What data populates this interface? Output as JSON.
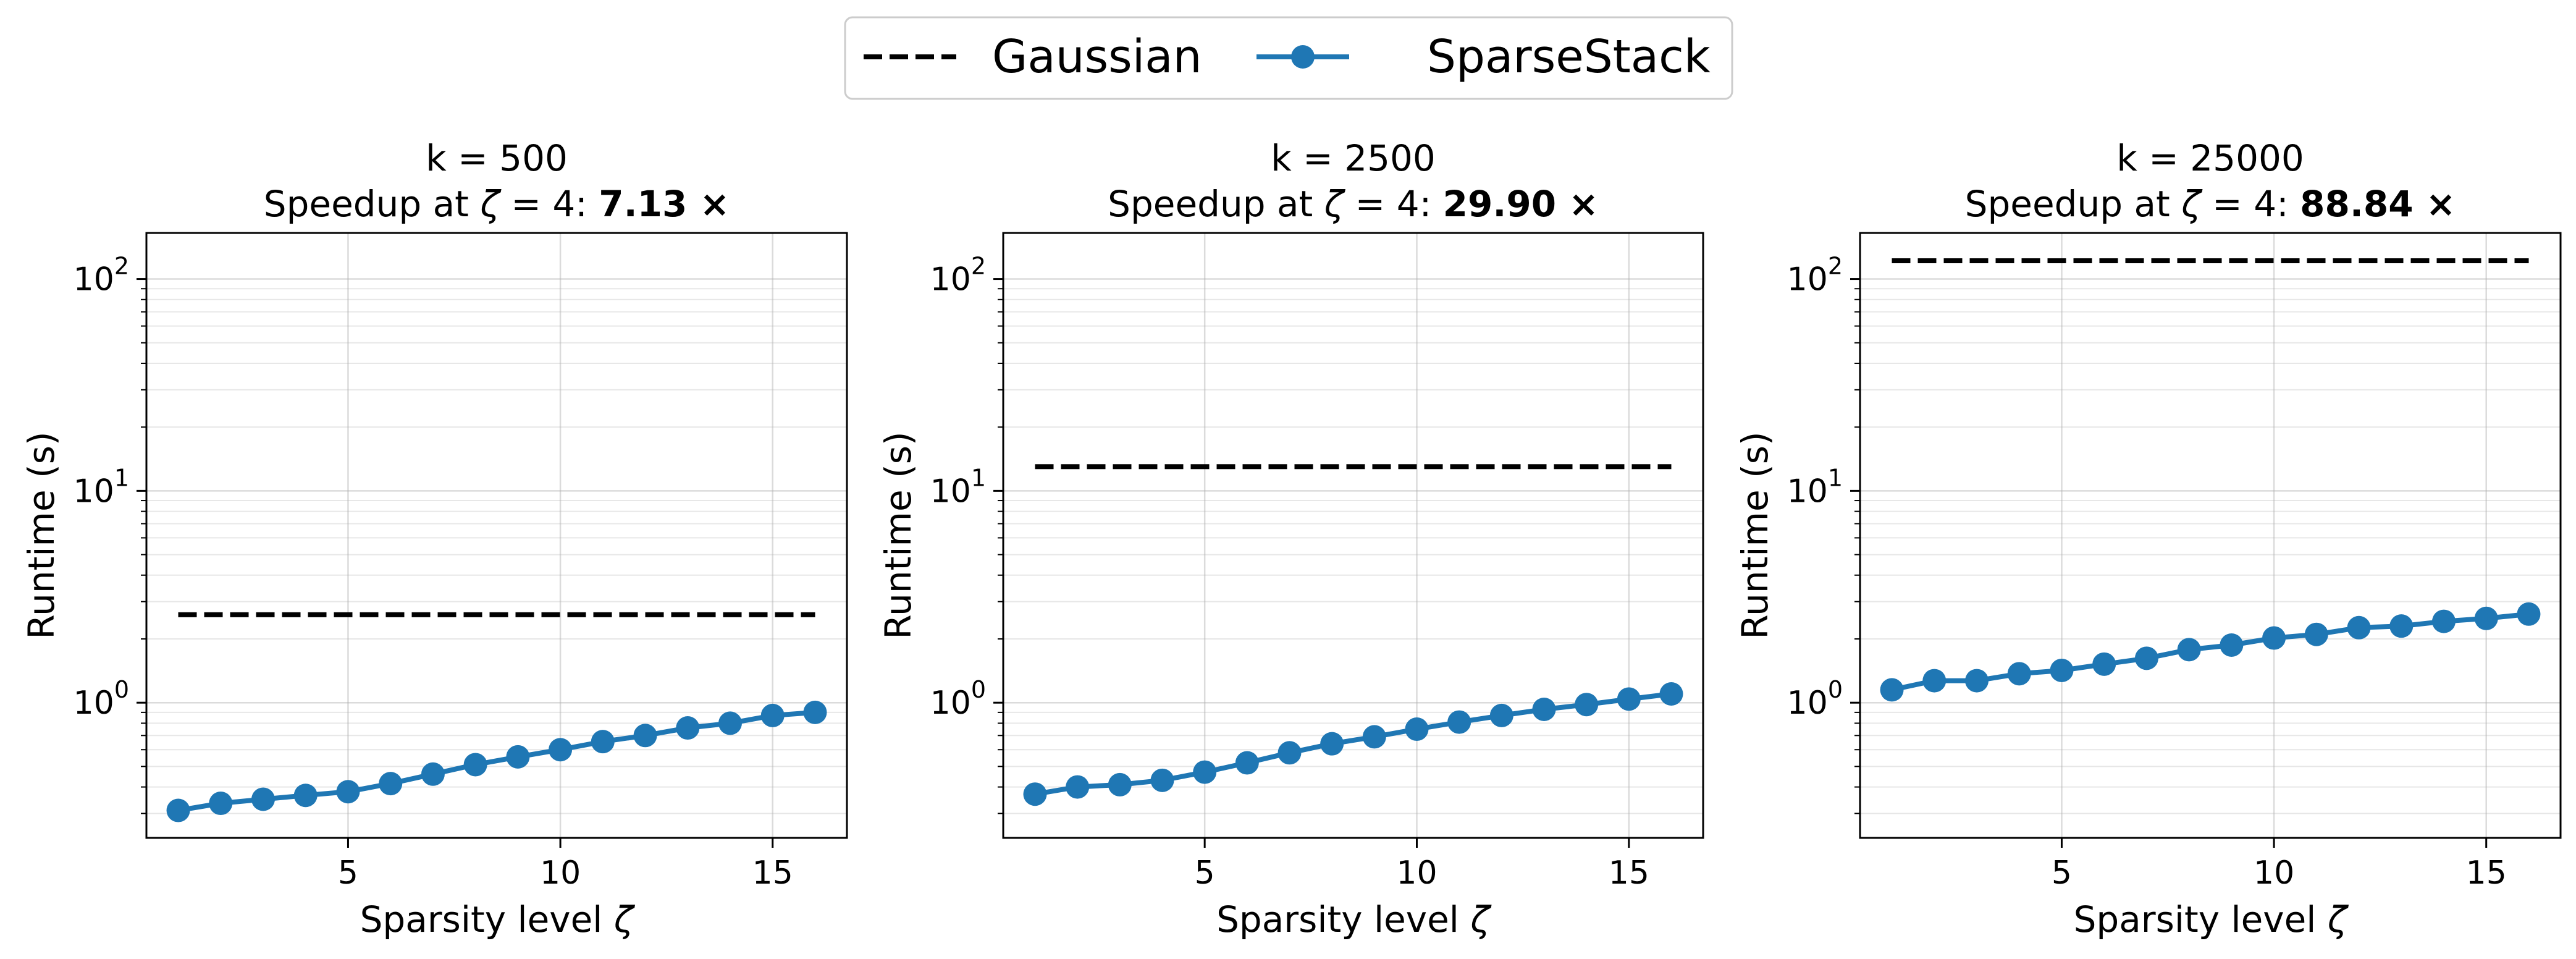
{
  "legend": {
    "entries": [
      {
        "label": "Gaussian",
        "color": "#000000",
        "style": "dashed"
      },
      {
        "label": "SparseStack",
        "color": "#1f77b4",
        "style": "solid-marker"
      }
    ],
    "placement": "top-center"
  },
  "chart_data": [
    {
      "type": "line",
      "title_line1": "k = 500",
      "title_prefix": "Speedup at ",
      "title_zeta": "ζ",
      "title_eq": " = 4: ",
      "title_value": "7.13",
      "title_times": " ×",
      "xlabel_text": "Sparsity level ",
      "xlabel_symbol": "ζ",
      "ylabel": "Runtime (s)",
      "xscale": "linear",
      "yscale": "log",
      "xlim": [
        0.25,
        16.75
      ],
      "ylim": [
        0.23,
        165
      ],
      "xticks": [
        5,
        10,
        15
      ],
      "yticks": [
        1,
        10,
        100
      ],
      "grid": true,
      "x": [
        1,
        2,
        3,
        4,
        5,
        6,
        7,
        8,
        9,
        10,
        11,
        12,
        13,
        14,
        15,
        16
      ],
      "series": [
        {
          "name": "Gaussian",
          "color": "#000000",
          "values": [
            2.6,
            2.6,
            2.6,
            2.6,
            2.6,
            2.6,
            2.6,
            2.6,
            2.6,
            2.6,
            2.6,
            2.6,
            2.6,
            2.6,
            2.6,
            2.6
          ]
        },
        {
          "name": "SparseStack",
          "color": "#1f77b4",
          "values": [
            0.31,
            0.335,
            0.35,
            0.365,
            0.38,
            0.415,
            0.46,
            0.51,
            0.555,
            0.6,
            0.655,
            0.7,
            0.76,
            0.8,
            0.87,
            0.9
          ]
        }
      ]
    },
    {
      "type": "line",
      "title_line1": "k = 2500",
      "title_prefix": "Speedup at ",
      "title_zeta": "ζ",
      "title_eq": " = 4: ",
      "title_value": "29.90",
      "title_times": " ×",
      "xlabel_text": "Sparsity level ",
      "xlabel_symbol": "ζ",
      "ylabel": "Runtime (s)",
      "xscale": "linear",
      "yscale": "log",
      "xlim": [
        0.25,
        16.75
      ],
      "ylim": [
        0.23,
        165
      ],
      "xticks": [
        5,
        10,
        15
      ],
      "yticks": [
        1,
        10,
        100
      ],
      "grid": true,
      "x": [
        1,
        2,
        3,
        4,
        5,
        6,
        7,
        8,
        9,
        10,
        11,
        12,
        13,
        14,
        15,
        16
      ],
      "series": [
        {
          "name": "Gaussian",
          "color": "#000000",
          "values": [
            13,
            13,
            13,
            13,
            13,
            13,
            13,
            13,
            13,
            13,
            13,
            13,
            13,
            13,
            13,
            13
          ]
        },
        {
          "name": "SparseStack",
          "color": "#1f77b4",
          "values": [
            0.37,
            0.4,
            0.41,
            0.43,
            0.47,
            0.52,
            0.58,
            0.64,
            0.69,
            0.75,
            0.81,
            0.87,
            0.93,
            0.98,
            1.04,
            1.1
          ]
        }
      ]
    },
    {
      "type": "line",
      "title_line1": "k = 25000",
      "title_prefix": "Speedup at ",
      "title_zeta": "ζ",
      "title_eq": " = 4: ",
      "title_value": "88.84",
      "title_times": " ×",
      "xlabel_text": "Sparsity level ",
      "xlabel_symbol": "ζ",
      "ylabel": "Runtime (s)",
      "xscale": "linear",
      "yscale": "log",
      "xlim": [
        0.25,
        16.75
      ],
      "ylim": [
        0.23,
        165
      ],
      "xticks": [
        5,
        10,
        15
      ],
      "yticks": [
        1,
        10,
        100
      ],
      "grid": true,
      "x": [
        1,
        2,
        3,
        4,
        5,
        6,
        7,
        8,
        9,
        10,
        11,
        12,
        13,
        14,
        15,
        16
      ],
      "series": [
        {
          "name": "Gaussian",
          "color": "#000000",
          "values": [
            122,
            122,
            122,
            122,
            122,
            122,
            122,
            122,
            122,
            122,
            122,
            122,
            122,
            122,
            122,
            122
          ]
        },
        {
          "name": "SparseStack",
          "color": "#1f77b4",
          "values": [
            1.15,
            1.27,
            1.27,
            1.37,
            1.42,
            1.52,
            1.62,
            1.78,
            1.87,
            2.02,
            2.1,
            2.26,
            2.3,
            2.42,
            2.5,
            2.62
          ]
        }
      ]
    }
  ]
}
